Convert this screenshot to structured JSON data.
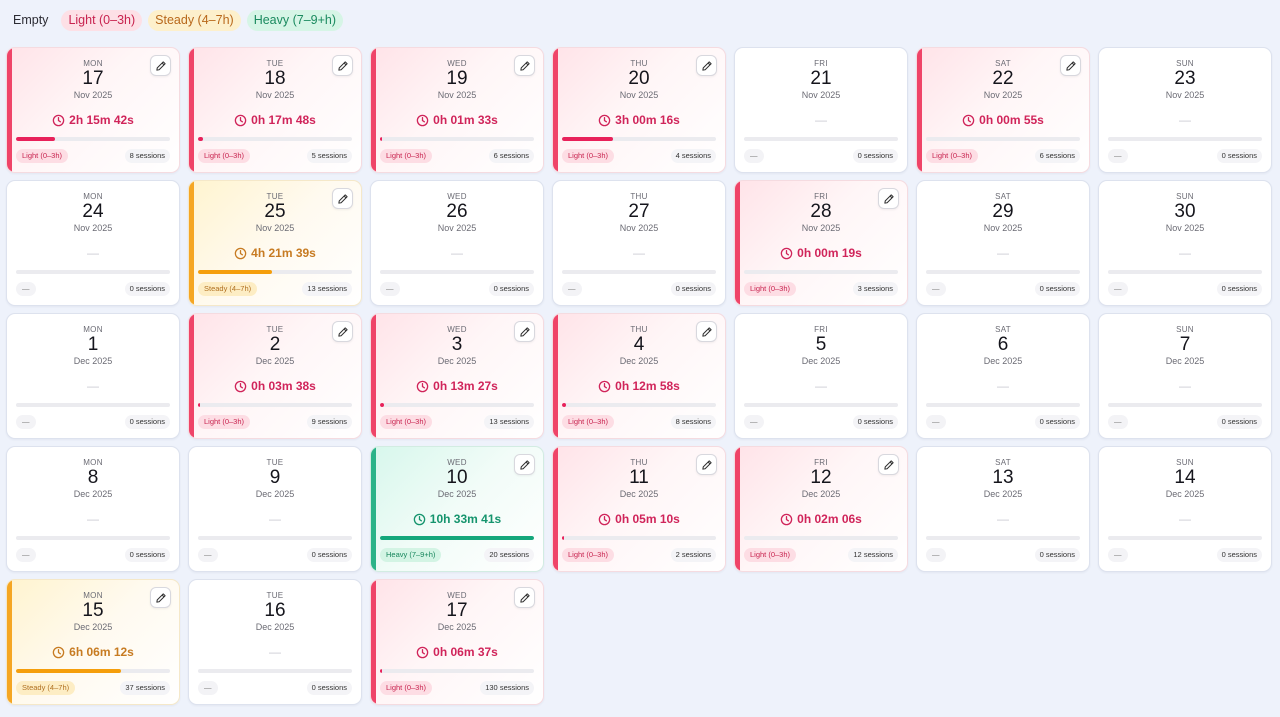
{
  "legend": {
    "empty": "Empty",
    "light": "Light (0–3h)",
    "steady": "Steady (4–7h)",
    "heavy": "Heavy (7–9+h)"
  },
  "colors": {
    "light": "#ef4468",
    "steady": "#f5a623",
    "heavy": "#2bb388",
    "background": "#eef2fb"
  },
  "icons": {
    "edit": "pencil-icon",
    "clock": "clock-icon"
  },
  "days": [
    {
      "dow": "MON",
      "day": "17",
      "month": "Nov 2025",
      "duration": "2h 15m 42s",
      "level": "light",
      "tag": "Light (0–3h)",
      "sessions": "8 sessions",
      "pct": 25
    },
    {
      "dow": "TUE",
      "day": "18",
      "month": "Nov 2025",
      "duration": "0h 17m 48s",
      "level": "light",
      "tag": "Light (0–3h)",
      "sessions": "5 sessions",
      "pct": 3
    },
    {
      "dow": "WED",
      "day": "19",
      "month": "Nov 2025",
      "duration": "0h 01m 33s",
      "level": "light",
      "tag": "Light (0–3h)",
      "sessions": "6 sessions",
      "pct": 0.5
    },
    {
      "dow": "THU",
      "day": "20",
      "month": "Nov 2025",
      "duration": "3h 00m 16s",
      "level": "light",
      "tag": "Light (0–3h)",
      "sessions": "4 sessions",
      "pct": 33
    },
    {
      "dow": "FRI",
      "day": "21",
      "month": "Nov 2025",
      "duration": "—",
      "level": "empty",
      "tag": "—",
      "sessions": "0 sessions",
      "pct": 0
    },
    {
      "dow": "SAT",
      "day": "22",
      "month": "Nov 2025",
      "duration": "0h 00m 55s",
      "level": "light",
      "tag": "Light (0–3h)",
      "sessions": "6 sessions",
      "pct": 0
    },
    {
      "dow": "SUN",
      "day": "23",
      "month": "Nov 2025",
      "duration": "—",
      "level": "empty",
      "tag": "—",
      "sessions": "0 sessions",
      "pct": 0
    },
    {
      "dow": "MON",
      "day": "24",
      "month": "Nov 2025",
      "duration": "—",
      "level": "empty",
      "tag": "—",
      "sessions": "0 sessions",
      "pct": 0
    },
    {
      "dow": "TUE",
      "day": "25",
      "month": "Nov 2025",
      "duration": "4h 21m 39s",
      "level": "steady",
      "tag": "Steady (4–7h)",
      "sessions": "13 sessions",
      "pct": 48
    },
    {
      "dow": "WED",
      "day": "26",
      "month": "Nov 2025",
      "duration": "—",
      "level": "empty",
      "tag": "—",
      "sessions": "0 sessions",
      "pct": 0
    },
    {
      "dow": "THU",
      "day": "27",
      "month": "Nov 2025",
      "duration": "—",
      "level": "empty",
      "tag": "—",
      "sessions": "0 sessions",
      "pct": 0
    },
    {
      "dow": "FRI",
      "day": "28",
      "month": "Nov 2025",
      "duration": "0h 00m 19s",
      "level": "light",
      "tag": "Light (0–3h)",
      "sessions": "3 sessions",
      "pct": 0
    },
    {
      "dow": "SAT",
      "day": "29",
      "month": "Nov 2025",
      "duration": "—",
      "level": "empty",
      "tag": "—",
      "sessions": "0 sessions",
      "pct": 0
    },
    {
      "dow": "SUN",
      "day": "30",
      "month": "Nov 2025",
      "duration": "—",
      "level": "empty",
      "tag": "—",
      "sessions": "0 sessions",
      "pct": 0
    },
    {
      "dow": "MON",
      "day": "1",
      "month": "Dec 2025",
      "duration": "—",
      "level": "empty",
      "tag": "—",
      "sessions": "0 sessions",
      "pct": 0
    },
    {
      "dow": "TUE",
      "day": "2",
      "month": "Dec 2025",
      "duration": "0h 03m 38s",
      "level": "light",
      "tag": "Light (0–3h)",
      "sessions": "9 sessions",
      "pct": 0.8
    },
    {
      "dow": "WED",
      "day": "3",
      "month": "Dec 2025",
      "duration": "0h 13m 27s",
      "level": "light",
      "tag": "Light (0–3h)",
      "sessions": "13 sessions",
      "pct": 2.5
    },
    {
      "dow": "THU",
      "day": "4",
      "month": "Dec 2025",
      "duration": "0h 12m 58s",
      "level": "light",
      "tag": "Light (0–3h)",
      "sessions": "8 sessions",
      "pct": 2.5
    },
    {
      "dow": "FRI",
      "day": "5",
      "month": "Dec 2025",
      "duration": "—",
      "level": "empty",
      "tag": "—",
      "sessions": "0 sessions",
      "pct": 0
    },
    {
      "dow": "SAT",
      "day": "6",
      "month": "Dec 2025",
      "duration": "—",
      "level": "empty",
      "tag": "—",
      "sessions": "0 sessions",
      "pct": 0
    },
    {
      "dow": "SUN",
      "day": "7",
      "month": "Dec 2025",
      "duration": "—",
      "level": "empty",
      "tag": "—",
      "sessions": "0 sessions",
      "pct": 0
    },
    {
      "dow": "MON",
      "day": "8",
      "month": "Dec 2025",
      "duration": "—",
      "level": "empty",
      "tag": "—",
      "sessions": "0 sessions",
      "pct": 0
    },
    {
      "dow": "TUE",
      "day": "9",
      "month": "Dec 2025",
      "duration": "—",
      "level": "empty",
      "tag": "—",
      "sessions": "0 sessions",
      "pct": 0
    },
    {
      "dow": "WED",
      "day": "10",
      "month": "Dec 2025",
      "duration": "10h 33m 41s",
      "level": "heavy",
      "tag": "Heavy (7–9+h)",
      "sessions": "20 sessions",
      "pct": 100
    },
    {
      "dow": "THU",
      "day": "11",
      "month": "Dec 2025",
      "duration": "0h 05m 10s",
      "level": "light",
      "tag": "Light (0–3h)",
      "sessions": "2 sessions",
      "pct": 1
    },
    {
      "dow": "FRI",
      "day": "12",
      "month": "Dec 2025",
      "duration": "0h 02m 06s",
      "level": "light",
      "tag": "Light (0–3h)",
      "sessions": "12 sessions",
      "pct": 0
    },
    {
      "dow": "SAT",
      "day": "13",
      "month": "Dec 2025",
      "duration": "—",
      "level": "empty",
      "tag": "—",
      "sessions": "0 sessions",
      "pct": 0
    },
    {
      "dow": "SUN",
      "day": "14",
      "month": "Dec 2025",
      "duration": "—",
      "level": "empty",
      "tag": "—",
      "sessions": "0 sessions",
      "pct": 0
    },
    {
      "dow": "MON",
      "day": "15",
      "month": "Dec 2025",
      "duration": "6h 06m 12s",
      "level": "steady",
      "tag": "Steady (4–7h)",
      "sessions": "37 sessions",
      "pct": 68
    },
    {
      "dow": "TUE",
      "day": "16",
      "month": "Dec 2025",
      "duration": "—",
      "level": "empty",
      "tag": "—",
      "sessions": "0 sessions",
      "pct": 0
    },
    {
      "dow": "WED",
      "day": "17",
      "month": "Dec 2025",
      "duration": "0h 06m 37s",
      "level": "light",
      "tag": "Light (0–3h)",
      "sessions": "130 sessions",
      "pct": 1
    }
  ]
}
